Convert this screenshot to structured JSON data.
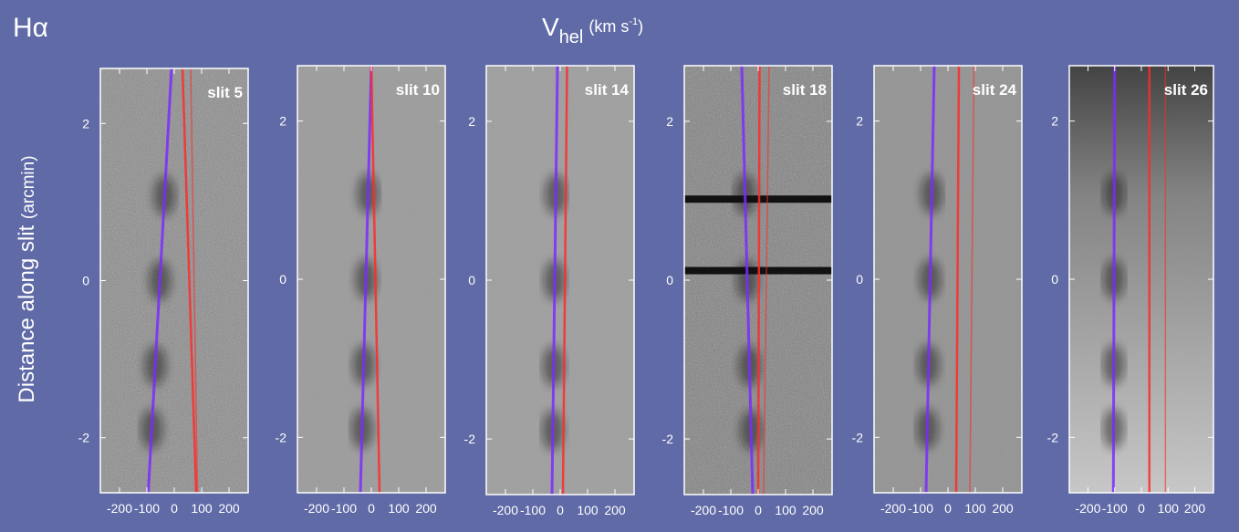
{
  "header": {
    "line_label": "Hα",
    "x_title_main": "V",
    "x_title_sub": "hel",
    "x_title_unit": "(km s",
    "x_title_unit_sup": "-1",
    "x_title_unit_end": ")",
    "y_title": "Distance along slit",
    "y_title_unit": "(arcmin)"
  },
  "colors": {
    "background": "#5f6aa6",
    "blue_line": "#7a2cff",
    "red_line": "#ff2a2a",
    "tick_text": "#ffffff"
  },
  "chart_data": [
    {
      "type": "image-panel",
      "slit_label": "slit 5",
      "xlim": [
        -270,
        270
      ],
      "ylim": [
        -2.7,
        2.7
      ],
      "x_ticks": [
        -200,
        -100,
        0,
        100,
        200
      ],
      "x_tick_labels": [
        "-200",
        "-100",
        "0",
        "100",
        "200"
      ],
      "y_ticks": [
        -2,
        0,
        2
      ],
      "y_tick_labels": [
        "-2",
        "0",
        "2"
      ],
      "blue_line": {
        "x_at_top": -10,
        "x_at_bottom": -95
      },
      "red_line": {
        "x_at_top": 30,
        "x_at_bottom": 80
      },
      "red_line2": {
        "x_at_top": 60,
        "x_at_bottom": 85
      }
    },
    {
      "type": "image-panel",
      "slit_label": "slit 10",
      "xlim": [
        -270,
        270
      ],
      "ylim": [
        -2.7,
        2.7
      ],
      "x_ticks": [
        -200,
        -100,
        0,
        100,
        200
      ],
      "x_tick_labels": [
        "-200",
        "-100",
        "0",
        "100",
        "200"
      ],
      "y_ticks": [
        -2,
        0,
        2
      ],
      "y_tick_labels": [
        "-2",
        "0",
        "2"
      ],
      "blue_line": {
        "x_at_top": 0,
        "x_at_bottom": -40
      },
      "red_line": {
        "x_at_top": 0,
        "x_at_bottom": 30
      }
    },
    {
      "type": "image-panel",
      "slit_label": "slit 14",
      "xlim": [
        -270,
        270
      ],
      "ylim": [
        -2.7,
        2.7
      ],
      "x_ticks": [
        -200,
        -100,
        0,
        100,
        200
      ],
      "x_tick_labels": [
        "-200",
        "-100",
        "0",
        "100",
        "200"
      ],
      "y_ticks": [
        -2,
        0,
        2
      ],
      "y_tick_labels": [
        "-2",
        "0",
        "2"
      ],
      "blue_line": {
        "x_at_top": -10,
        "x_at_bottom": -30
      },
      "red_line": {
        "x_at_top": 25,
        "x_at_bottom": 10
      }
    },
    {
      "type": "image-panel",
      "slit_label": "slit 18",
      "xlim": [
        -270,
        270
      ],
      "ylim": [
        -2.7,
        2.7
      ],
      "x_ticks": [
        -200,
        -100,
        0,
        100,
        200
      ],
      "x_tick_labels": [
        "-200",
        "-100",
        "0",
        "100",
        "200"
      ],
      "y_ticks": [
        -2,
        0,
        2
      ],
      "y_tick_labels": [
        "-2",
        "0",
        "2"
      ],
      "blue_line": {
        "x_at_top": -60,
        "x_at_bottom": -20
      },
      "red_line": {
        "x_at_top": 5,
        "x_at_bottom": 0
      },
      "red_line2": {
        "x_at_top": 40,
        "x_at_bottom": 20
      }
    },
    {
      "type": "image-panel",
      "slit_label": "slit 24",
      "xlim": [
        -270,
        270
      ],
      "ylim": [
        -2.7,
        2.7
      ],
      "x_ticks": [
        -200,
        -100,
        0,
        100,
        200
      ],
      "x_tick_labels": [
        "-200",
        "-100",
        "0",
        "100",
        "200"
      ],
      "y_ticks": [
        -2,
        0,
        2
      ],
      "y_tick_labels": [
        "-2",
        "0",
        "2"
      ],
      "blue_line": {
        "x_at_top": -50,
        "x_at_bottom": -80
      },
      "red_line": {
        "x_at_top": 40,
        "x_at_bottom": 30
      },
      "red_line2": {
        "x_at_top": 95,
        "x_at_bottom": 80
      }
    },
    {
      "type": "image-panel",
      "slit_label": "slit 26",
      "xlim": [
        -270,
        270
      ],
      "ylim": [
        -2.7,
        2.7
      ],
      "x_ticks": [
        -200,
        -100,
        0,
        100,
        200
      ],
      "x_tick_labels": [
        "-200",
        "-100",
        "0",
        "100",
        "200"
      ],
      "y_ticks": [
        -2,
        0,
        2
      ],
      "y_tick_labels": [
        "-2",
        "0",
        "2"
      ],
      "blue_line": {
        "x_at_top": -100,
        "x_at_bottom": -105
      },
      "red_line": {
        "x_at_top": 30,
        "x_at_bottom": 30
      },
      "red_line2": {
        "x_at_top": 90,
        "x_at_bottom": 90
      }
    }
  ]
}
